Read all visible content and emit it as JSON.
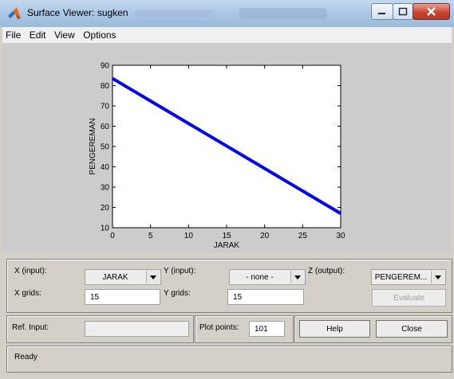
{
  "window": {
    "title": "Surface Viewer: sugken"
  },
  "menu": [
    "File",
    "Edit",
    "View",
    "Options"
  ],
  "chart_data": {
    "type": "line",
    "xlabel": "JARAK",
    "ylabel": "PENGEREMAN",
    "xlim": [
      0,
      30
    ],
    "ylim": [
      10,
      90
    ],
    "xticks": [
      0,
      5,
      10,
      15,
      20,
      25,
      30
    ],
    "yticks": [
      10,
      20,
      30,
      40,
      50,
      60,
      70,
      80,
      90
    ],
    "grid": false,
    "series": [
      {
        "x": [
          0,
          30
        ],
        "y": [
          83.5,
          17
        ],
        "color": "#0000ff"
      }
    ]
  },
  "controls": {
    "x_input_label": "X (input):",
    "x_input_value": "JARAK",
    "y_input_label": "Y (input):",
    "y_input_value": "- none -",
    "z_output_label": "Z (output):",
    "z_output_value": "PENGEREM...",
    "x_grids_label": "X grids:",
    "x_grids_value": "15",
    "y_grids_label": "Y grids:",
    "y_grids_value": "15",
    "evaluate_label": "Evaluate",
    "ref_input_label": "Ref. Input:",
    "ref_input_value": "",
    "plot_points_label": "Plot points:",
    "plot_points_value": "101",
    "help_label": "Help",
    "close_label": "Close"
  },
  "status": {
    "text": "Ready"
  }
}
